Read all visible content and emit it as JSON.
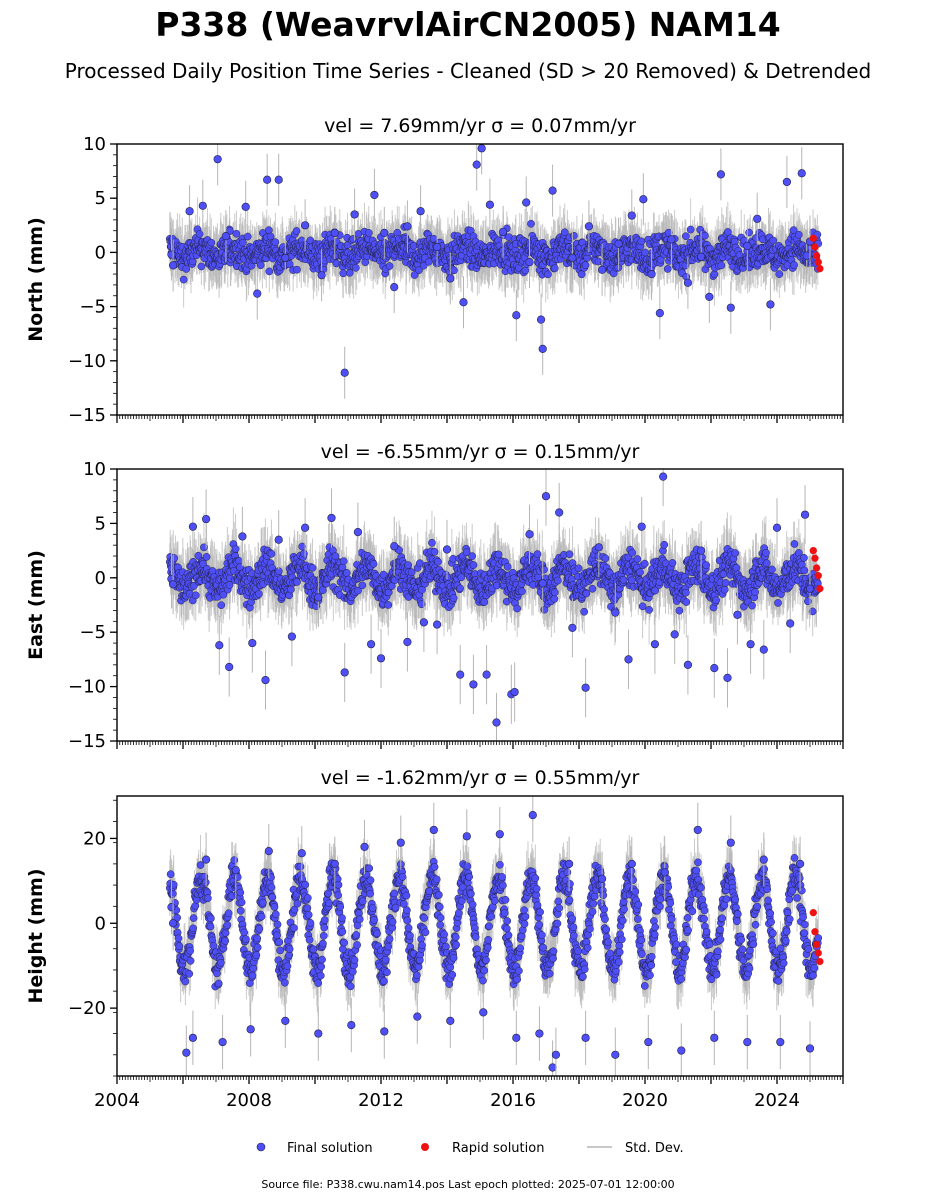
{
  "figure": {
    "title": "P338 (WeavrvlAirCN2005) NAM14",
    "subtitle": "Processed Daily Position Time Series - Cleaned (SD > 20 Removed) & Detrended",
    "footer": "Source file: P338.cwu.nam14.pos  Last epoch plotted: 2025-07-01 12:00:00"
  },
  "legend": {
    "final": "Final solution",
    "rapid": "Rapid solution",
    "std": "Std. Dev.",
    "placement": "bottom-center"
  },
  "colors": {
    "final": "#4f4ff7",
    "final_edge": "#222244",
    "rapid": "#ee1111",
    "std": "#b5b5b5"
  },
  "chart_data": [
    {
      "type": "scatter",
      "name": "north",
      "title_vel": "vel = 7.69mm/yr",
      "title_sigma": "σ = 0.07mm/yr",
      "ylabel": "North (mm)",
      "ylim": [
        -15,
        10
      ],
      "yticks": [
        10,
        5,
        0,
        -5,
        -10,
        -15
      ],
      "xlim": [
        2004.0,
        2026.0
      ],
      "xticks": [],
      "grid": false,
      "trend": {
        "start": 2005.6,
        "end": 2025.25,
        "spread": 1.5,
        "seasonal_amp": 0.5
      },
      "series": [
        {
          "name": "Final solution",
          "x": [
            2005.65,
            2005.7,
            2006.2,
            2006.6,
            2007.05,
            2007.3,
            2007.9,
            2008.25,
            2008.55,
            2008.9,
            2009.1,
            2009.7,
            2010.2,
            2010.6,
            2010.9,
            2011.2,
            2011.8,
            2012.1,
            2012.4,
            2012.8,
            2013.2,
            2013.7,
            2014.1,
            2014.5,
            2014.9,
            2015.05,
            2015.3,
            2015.7,
            2016.1,
            2016.4,
            2016.5,
            2016.85,
            2016.9,
            2017.2,
            2017.8,
            2018.3,
            2018.7,
            2019.2,
            2019.6,
            2019.95,
            2020.2,
            2020.45,
            2020.8,
            2021.3,
            2021.7,
            2021.95,
            2022.3,
            2022.6,
            2023.1,
            2023.4,
            2023.8,
            2024.3,
            2024.75,
            2024.9,
            2025.0
          ],
          "y": [
            -0.2,
            -1.2,
            3.8,
            4.3,
            8.6,
            1.5,
            4.2,
            -3.8,
            6.7,
            6.7,
            -0.5,
            2.5,
            -2.1,
            1.8,
            -11.1,
            3.5,
            5.3,
            1.8,
            -3.2,
            2.4,
            3.8,
            0.5,
            -2.4,
            -4.6,
            8.1,
            9.6,
            4.4,
            1.9,
            -5.8,
            4.6,
            -0.9,
            -6.2,
            -8.9,
            5.7,
            -0.5,
            2.4,
            -1.6,
            0.8,
            3.4,
            4.9,
            -2.0,
            -5.6,
            1.2,
            -2.8,
            -0.4,
            -4.1,
            7.2,
            -5.1,
            0.6,
            3.1,
            -4.8,
            6.5,
            7.3,
            -0.3,
            1.0
          ]
        },
        {
          "name": "Rapid solution",
          "x": [
            2025.1,
            2025.15,
            2025.2,
            2025.25,
            2025.3
          ],
          "y": [
            1.3,
            0.5,
            -0.3,
            -0.9,
            -1.5
          ]
        }
      ]
    },
    {
      "type": "scatter",
      "name": "east",
      "title_vel": "vel = -6.55mm/yr",
      "title_sigma": "σ = 0.15mm/yr",
      "ylabel": "East (mm)",
      "ylim": [
        -15,
        10
      ],
      "yticks": [
        10,
        5,
        0,
        -5,
        -10,
        -15
      ],
      "xlim": [
        2004.0,
        2026.0
      ],
      "xticks": [],
      "grid": false,
      "trend": {
        "start": 2005.6,
        "end": 2025.25,
        "spread": 1.7,
        "seasonal_amp": 1.1
      },
      "series": [
        {
          "name": "Final solution",
          "x": [
            2005.65,
            2005.7,
            2006.3,
            2006.7,
            2007.1,
            2007.4,
            2007.8,
            2008.1,
            2008.5,
            2008.9,
            2009.3,
            2009.7,
            2010.1,
            2010.5,
            2010.9,
            2011.3,
            2011.7,
            2012.0,
            2012.4,
            2012.8,
            2013.3,
            2013.7,
            2014.0,
            2014.4,
            2014.8,
            2015.2,
            2015.5,
            2015.95,
            2016.05,
            2016.5,
            2016.9,
            2017.0,
            2017.4,
            2017.8,
            2018.2,
            2018.6,
            2019.1,
            2019.5,
            2019.9,
            2020.3,
            2020.55,
            2020.9,
            2021.3,
            2021.7,
            2022.1,
            2022.5,
            2022.8,
            2023.2,
            2023.6,
            2024.0,
            2024.4,
            2024.85,
            2025.0
          ],
          "y": [
            -0.1,
            -0.6,
            4.7,
            5.4,
            -6.2,
            -8.2,
            3.8,
            -6.0,
            -9.4,
            3.5,
            -5.4,
            4.6,
            -1.8,
            5.5,
            -8.7,
            4.2,
            -6.1,
            -7.4,
            2.9,
            -5.9,
            -4.1,
            -4.3,
            2.6,
            -8.9,
            -9.8,
            -8.9,
            -13.3,
            -10.7,
            -10.5,
            4.0,
            -0.5,
            7.5,
            6.0,
            -4.6,
            -10.1,
            2.8,
            -3.2,
            -7.5,
            4.7,
            -6.1,
            9.3,
            -5.2,
            -8.0,
            2.5,
            -8.3,
            -9.2,
            -3.4,
            -6.1,
            -6.6,
            4.6,
            -4.2,
            5.8,
            -1.0
          ]
        },
        {
          "name": "Rapid solution",
          "x": [
            2025.1,
            2025.15,
            2025.2,
            2025.25,
            2025.3
          ],
          "y": [
            2.5,
            1.8,
            0.9,
            0.2,
            -1.0
          ]
        }
      ]
    },
    {
      "type": "scatter",
      "name": "height",
      "title_vel": "vel = -1.62mm/yr",
      "title_sigma": "σ = 0.55mm/yr",
      "ylabel": "Height (mm)",
      "ylim": [
        -36,
        30
      ],
      "yticks": [
        20,
        0,
        -20
      ],
      "xlim": [
        2004.0,
        2026.0
      ],
      "xticks": [
        "2004",
        "2008",
        "2012",
        "2016",
        "2020",
        "2024"
      ],
      "grid": false,
      "trend": {
        "start": 2005.6,
        "end": 2025.25,
        "spread": 4.0,
        "seasonal_amp": 11.0
      },
      "series": [
        {
          "name": "Final solution",
          "x": [
            2005.65,
            2005.7,
            2006.1,
            2006.3,
            2006.7,
            2007.2,
            2007.6,
            2008.05,
            2008.6,
            2009.1,
            2009.6,
            2010.1,
            2010.6,
            2011.1,
            2011.5,
            2012.1,
            2012.6,
            2013.1,
            2013.6,
            2014.1,
            2014.6,
            2015.1,
            2015.6,
            2016.1,
            2016.6,
            2016.8,
            2017.2,
            2017.3,
            2017.7,
            2018.2,
            2018.7,
            2019.1,
            2019.6,
            2020.1,
            2020.6,
            2021.1,
            2021.6,
            2022.1,
            2022.6,
            2023.1,
            2023.6,
            2024.1,
            2024.7,
            2025.0
          ],
          "y": [
            3.8,
            0.0,
            -30.5,
            -27.0,
            15.0,
            -28.0,
            12.5,
            -25.0,
            17.0,
            -23.0,
            16.5,
            -26.0,
            14.0,
            -24.0,
            18.0,
            -25.5,
            19.0,
            -22.0,
            22.0,
            -23.0,
            20.5,
            -21.0,
            21.0,
            -27.0,
            25.5,
            -26.0,
            -34.0,
            -31.0,
            14.0,
            -27.0,
            10.5,
            -31.0,
            14.0,
            -28.0,
            12.0,
            -30.0,
            22.0,
            -27.0,
            19.0,
            -28.0,
            15.0,
            -28.0,
            14.0,
            -29.5
          ]
        },
        {
          "name": "Rapid solution",
          "x": [
            2025.1,
            2025.15,
            2025.2,
            2025.25,
            2025.3
          ],
          "y": [
            2.5,
            -2.0,
            -5.0,
            -7.0,
            -9.0
          ]
        }
      ]
    }
  ]
}
